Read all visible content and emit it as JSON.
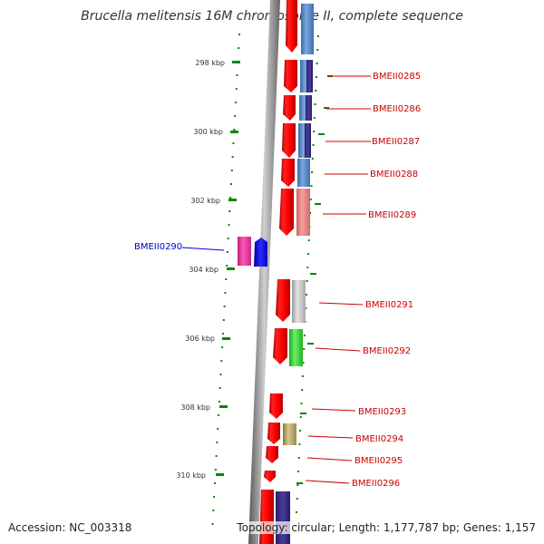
{
  "title": "Brucella melitensis 16M chromosome II, complete sequence",
  "scale": {
    "unit": "kbp",
    "ticks": [
      298,
      300,
      302,
      304,
      306,
      308,
      310
    ],
    "tick_labels": [
      "298 kbp",
      "300 kbp",
      "302 kbp",
      "304 kbp",
      "306 kbp",
      "308 kbp",
      "310 kbp"
    ]
  },
  "genes": [
    {
      "label": "BMEII0285",
      "color": "#cc0000"
    },
    {
      "label": "BMEII0286",
      "color": "#cc0000"
    },
    {
      "label": "BMEII0287",
      "color": "#cc0000"
    },
    {
      "label": "BMEII0288",
      "color": "#cc0000"
    },
    {
      "label": "BMEII0289",
      "color": "#cc0000"
    },
    {
      "label": "BMEII0290",
      "color": "#0000cc"
    },
    {
      "label": "BMEII0291",
      "color": "#cc0000"
    },
    {
      "label": "BMEII0292",
      "color": "#cc0000"
    },
    {
      "label": "BMEII0293",
      "color": "#cc0000"
    },
    {
      "label": "BMEII0294",
      "color": "#cc0000"
    },
    {
      "label": "BMEII0295",
      "color": "#cc0000"
    },
    {
      "label": "BMEII0296",
      "color": "#cc0000"
    }
  ],
  "colors": {
    "forward_gene": "#ff0000",
    "reverse_gene": "#0000ff",
    "scale_marks": "#008800",
    "backbone": "#888888"
  },
  "footer": {
    "accession": "Accession: NC_003318",
    "summary": "Topology: circular; Length: 1,177,787 bp; Genes: 1,157"
  }
}
